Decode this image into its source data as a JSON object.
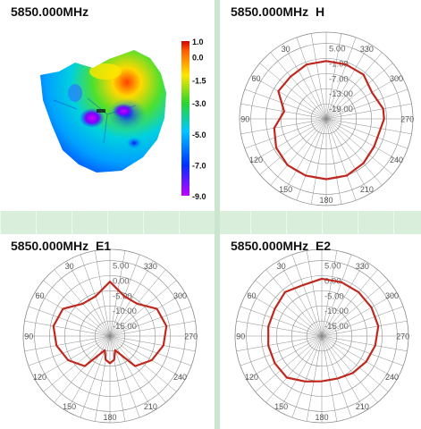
{
  "panels": {
    "surface": {
      "title": "5850.000MHz"
    },
    "h": {
      "title": "5850.000MHz  H"
    },
    "e1": {
      "title": "5850.000MHz  E1"
    },
    "e2": {
      "title": "5850.000MHz  E2"
    }
  },
  "colorbar": {
    "labels": [
      "1.0",
      "0.0",
      "-1.5",
      "-3.0",
      "-5.0",
      "-7.0",
      "-9.0"
    ],
    "stops": [
      "#d40000",
      "#ff5a00",
      "#ffe600",
      "#2bd52b",
      "#00c8ff",
      "#0030ff",
      "#c000ff"
    ]
  },
  "colors": {
    "trace": "#c0281e",
    "grid": "#8c8c8c",
    "text": "#111111"
  },
  "chart_data": [
    {
      "type": "heatmap",
      "title": "5850.000MHz",
      "colorbar_values": [
        1.0,
        0.0,
        -1.5,
        -3.0,
        -5.0,
        -7.0,
        -9.0
      ]
    },
    {
      "type": "line",
      "polar": true,
      "title": "5850.000MHz  H",
      "radial_labels": [
        "5.00",
        "-1.00",
        "-7.00",
        "-13.00",
        "-19.00"
      ],
      "angle_labels": [
        "30",
        "330",
        "60",
        "300",
        "90",
        "270",
        "120",
        "240",
        "150",
        "210",
        "180"
      ],
      "rlim": [
        -25,
        5
      ],
      "angles": [
        0,
        20,
        40,
        60,
        80,
        100,
        120,
        140,
        160,
        180,
        200,
        220,
        240,
        260,
        270,
        280,
        300,
        320,
        340
      ],
      "values": [
        -2,
        -2,
        -3,
        -3,
        -8,
        -4,
        -2,
        -1,
        -1,
        -1,
        -1,
        -2,
        -3,
        -3,
        -2,
        -2,
        -4,
        -2,
        -2
      ]
    },
    {
      "type": "line",
      "polar": true,
      "title": "5850.000MHz  E1",
      "radial_labels": [
        "5.00",
        "0.00",
        "-5.00",
        "-10.00",
        "-15.00"
      ],
      "angle_labels": [
        "30",
        "330",
        "60",
        "300",
        "90",
        "270",
        "120",
        "240",
        "150",
        "210",
        "180"
      ],
      "rlim": [
        -20,
        5
      ],
      "angles": [
        0,
        20,
        40,
        60,
        80,
        100,
        120,
        140,
        160,
        170,
        180,
        190,
        200,
        220,
        240,
        260,
        280,
        300,
        320,
        340
      ],
      "values": [
        -2,
        -6,
        -6,
        -2,
        -1,
        -2,
        -4,
        -7,
        -15,
        -12,
        -11,
        -12,
        -15,
        -7,
        -4,
        -2,
        -1,
        -2,
        -6,
        -6
      ]
    },
    {
      "type": "line",
      "polar": true,
      "title": "5850.000MHz  E2",
      "radial_labels": [
        "5.00",
        "0.00",
        "-5.00",
        "-10.00",
        "-15.00"
      ],
      "angle_labels": [
        "30",
        "330",
        "60",
        "300",
        "90",
        "270",
        "120",
        "240",
        "150",
        "210",
        "180"
      ],
      "rlim": [
        -20,
        5
      ],
      "angles": [
        0,
        20,
        40,
        60,
        80,
        100,
        120,
        140,
        160,
        180,
        200,
        220,
        240,
        260,
        280,
        300,
        320,
        340
      ],
      "values": [
        -1,
        -2,
        -1,
        -2,
        -2,
        -2,
        -2,
        -2,
        -4,
        -5,
        -5,
        -4,
        -3,
        -2,
        -1,
        -1,
        -1,
        -1
      ]
    }
  ]
}
